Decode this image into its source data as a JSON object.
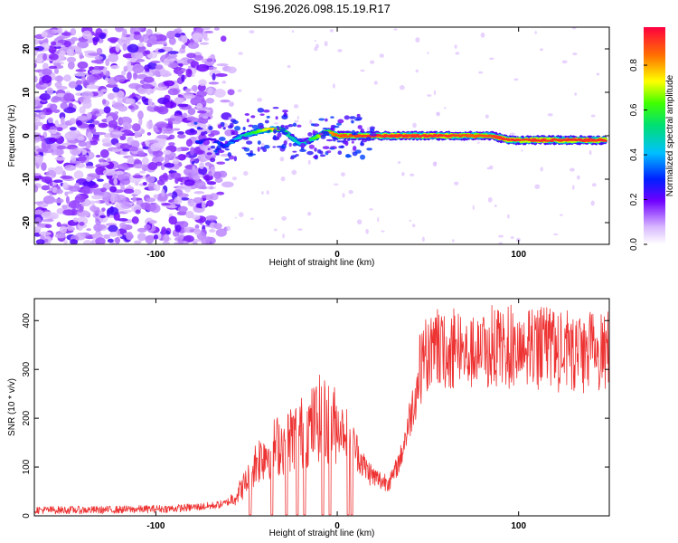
{
  "title": "S196.2026.098.15.19.R17",
  "chart_data": [
    {
      "type": "heatmap",
      "name": "spectrogram",
      "xlabel": "Height of straight line (km)",
      "ylabel": "Frequency (Hz)",
      "xlim": [
        -167,
        150
      ],
      "ylim": [
        -25,
        25
      ],
      "xticks": [
        -100,
        0,
        100
      ],
      "xtick_labels": [
        "-100",
        "0",
        "100"
      ],
      "yticks": [
        -20,
        -10,
        0,
        10,
        20
      ],
      "ytick_labels": [
        "-20",
        "-10",
        "0",
        "10",
        "20"
      ],
      "colorbar": {
        "label": "Normalized spectral amplitude",
        "range": [
          0,
          0.97
        ],
        "ticks": [
          0.0,
          0.2,
          0.4,
          0.6,
          0.8
        ],
        "tick_labels": [
          "0.0",
          "0.2",
          "0.4",
          "0.6",
          "0.8"
        ]
      },
      "ridge": {
        "x": [
          -77,
          -70,
          -62,
          -55,
          -48,
          -42,
          -36,
          -30,
          -25,
          -20,
          -15,
          -10,
          -5,
          0,
          20,
          40,
          60,
          75,
          85,
          95,
          110,
          125,
          140,
          148
        ],
        "frequency": [
          -1.5,
          -0.5,
          -2.5,
          -0.5,
          0.5,
          1.2,
          1.5,
          1.5,
          -0.5,
          -2.0,
          -1.0,
          0.0,
          1.0,
          0.0,
          0.0,
          0.0,
          0.0,
          0.0,
          0.0,
          -1.0,
          -1.0,
          -1.0,
          -1.0,
          -1.0
        ],
        "amplitude": [
          0.3,
          0.2,
          0.3,
          0.45,
          0.55,
          0.7,
          0.8,
          0.6,
          0.5,
          0.45,
          0.55,
          0.7,
          0.8,
          0.9,
          0.95,
          0.95,
          0.95,
          0.9,
          0.92,
          0.95,
          0.95,
          0.95,
          0.95,
          0.95
        ]
      }
    },
    {
      "type": "line",
      "name": "snr",
      "xlabel": "Height of straight line (km)",
      "ylabel": "SNR (10 * v/v)",
      "xlim": [
        -167,
        150
      ],
      "ylim": [
        0,
        445
      ],
      "xticks": [
        -100,
        0,
        100
      ],
      "xtick_labels": [
        "-100",
        "0",
        "100"
      ],
      "yticks": [
        0,
        100,
        200,
        300,
        400
      ],
      "ytick_labels": [
        "0",
        "100",
        "200",
        "300",
        "400"
      ],
      "color": "#ee3333",
      "envelope": {
        "x": [
          -167,
          -130,
          -90,
          -70,
          -62,
          -56,
          -50,
          -45,
          -40,
          -35,
          -30,
          -25,
          -20,
          -15,
          -10,
          -5,
          0,
          5,
          10,
          15,
          20,
          25,
          30,
          35,
          40,
          45,
          50,
          55,
          70,
          90,
          110,
          130,
          150
        ],
        "y": [
          12,
          12,
          15,
          20,
          25,
          40,
          70,
          110,
          130,
          140,
          150,
          160,
          170,
          180,
          200,
          190,
          185,
          175,
          140,
          100,
          80,
          70,
          75,
          120,
          200,
          280,
          320,
          330,
          330,
          330,
          330,
          320,
          320
        ]
      },
      "dropouts_x": [
        -48,
        -36,
        -28,
        -22,
        -18,
        -8,
        -4,
        6,
        8
      ]
    }
  ]
}
